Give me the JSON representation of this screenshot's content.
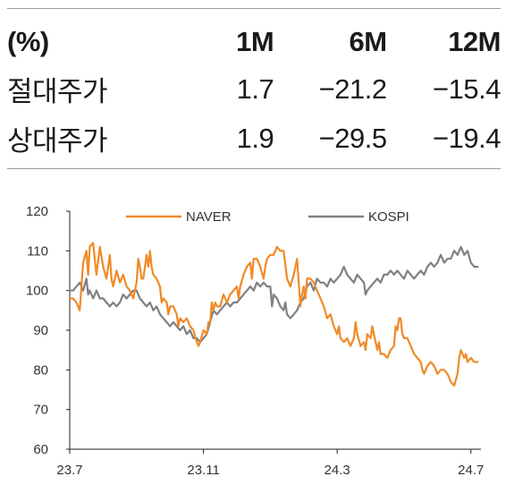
{
  "table": {
    "header": [
      "(%)",
      "1M",
      "6M",
      "12M"
    ],
    "rows": [
      {
        "label": "절대주가",
        "values": [
          "1.7",
          "−21.2",
          "−15.4"
        ]
      },
      {
        "label": "상대주가",
        "values": [
          "1.9",
          "−29.5",
          "−19.4"
        ]
      }
    ]
  },
  "chart_data": {
    "type": "line",
    "xlabel": "",
    "ylabel": "",
    "ylim": [
      60,
      120
    ],
    "yticks": [
      60,
      70,
      80,
      90,
      100,
      110,
      120
    ],
    "x_range": [
      0,
      12.3
    ],
    "xticks": [
      {
        "x": 0,
        "label": "23.7"
      },
      {
        "x": 4,
        "label": "23.11"
      },
      {
        "x": 8,
        "label": "24.3"
      },
      {
        "x": 12,
        "label": "24.7"
      }
    ],
    "legend_placement": "top",
    "grid": false,
    "series": [
      {
        "name": "NAVER",
        "color": "#f08a28",
        "points": [
          [
            0,
            98
          ],
          [
            0.1,
            98
          ],
          [
            0.2,
            97
          ],
          [
            0.3,
            95
          ],
          [
            0.35,
            101
          ],
          [
            0.4,
            107
          ],
          [
            0.5,
            110
          ],
          [
            0.55,
            104
          ],
          [
            0.6,
            111
          ],
          [
            0.7,
            112
          ],
          [
            0.75,
            108
          ],
          [
            0.8,
            104
          ],
          [
            0.9,
            111
          ],
          [
            1.0,
            106
          ],
          [
            1.1,
            103
          ],
          [
            1.2,
            109
          ],
          [
            1.25,
            103
          ],
          [
            1.3,
            101
          ],
          [
            1.4,
            105
          ],
          [
            1.5,
            102
          ],
          [
            1.6,
            104
          ],
          [
            1.7,
            101
          ],
          [
            1.8,
            100
          ],
          [
            1.9,
            98
          ],
          [
            2.0,
            102
          ],
          [
            2.05,
            108
          ],
          [
            2.1,
            106
          ],
          [
            2.15,
            103
          ],
          [
            2.2,
            103
          ],
          [
            2.3,
            109
          ],
          [
            2.35,
            106
          ],
          [
            2.4,
            110
          ],
          [
            2.45,
            106
          ],
          [
            2.5,
            104
          ],
          [
            2.6,
            103
          ],
          [
            2.7,
            101
          ],
          [
            2.75,
            97
          ],
          [
            2.8,
            98
          ],
          [
            2.9,
            97
          ],
          [
            2.95,
            94
          ],
          [
            3.0,
            96
          ],
          [
            3.1,
            96
          ],
          [
            3.2,
            94
          ],
          [
            3.25,
            91
          ],
          [
            3.3,
            93
          ],
          [
            3.4,
            92
          ],
          [
            3.5,
            93
          ],
          [
            3.6,
            91
          ],
          [
            3.7,
            90
          ],
          [
            3.8,
            87
          ],
          [
            3.85,
            86
          ],
          [
            3.9,
            87
          ],
          [
            4.0,
            90
          ],
          [
            4.1,
            89
          ],
          [
            4.15,
            92
          ],
          [
            4.2,
            92
          ],
          [
            4.25,
            97
          ],
          [
            4.3,
            95
          ],
          [
            4.35,
            97
          ],
          [
            4.4,
            96
          ],
          [
            4.5,
            96
          ],
          [
            4.6,
            99
          ],
          [
            4.7,
            97
          ],
          [
            4.8,
            99
          ],
          [
            4.9,
            100
          ],
          [
            5.0,
            101
          ],
          [
            5.05,
            98
          ],
          [
            5.1,
            101
          ],
          [
            5.2,
            104
          ],
          [
            5.3,
            106
          ],
          [
            5.4,
            107
          ],
          [
            5.45,
            103
          ],
          [
            5.5,
            108
          ],
          [
            5.6,
            108
          ],
          [
            5.7,
            106
          ],
          [
            5.8,
            103
          ],
          [
            5.85,
            106
          ],
          [
            5.9,
            108
          ],
          [
            6.0,
            109
          ],
          [
            6.1,
            109
          ],
          [
            6.2,
            111
          ],
          [
            6.3,
            110
          ],
          [
            6.4,
            110
          ],
          [
            6.5,
            103
          ],
          [
            6.6,
            101
          ],
          [
            6.7,
            104
          ],
          [
            6.8,
            108
          ],
          [
            6.85,
            102
          ],
          [
            6.9,
            96
          ],
          [
            6.95,
            99
          ],
          [
            7.0,
            101
          ],
          [
            7.05,
            98
          ],
          [
            7.1,
            103
          ],
          [
            7.2,
            103
          ],
          [
            7.3,
            102
          ],
          [
            7.4,
            100
          ],
          [
            7.5,
            98
          ],
          [
            7.55,
            97
          ],
          [
            7.6,
            96
          ],
          [
            7.7,
            93
          ],
          [
            7.8,
            94
          ],
          [
            7.9,
            91
          ],
          [
            8.0,
            89
          ],
          [
            8.05,
            91
          ],
          [
            8.1,
            88
          ],
          [
            8.2,
            87
          ],
          [
            8.3,
            88
          ],
          [
            8.4,
            86
          ],
          [
            8.5,
            88
          ],
          [
            8.55,
            92
          ],
          [
            8.6,
            89
          ],
          [
            8.7,
            86
          ],
          [
            8.8,
            87
          ],
          [
            8.85,
            85
          ],
          [
            8.9,
            89
          ],
          [
            9.0,
            88
          ],
          [
            9.05,
            91
          ],
          [
            9.1,
            89
          ],
          [
            9.2,
            85
          ],
          [
            9.25,
            87
          ],
          [
            9.3,
            84
          ],
          [
            9.4,
            84
          ],
          [
            9.5,
            83
          ],
          [
            9.6,
            85
          ],
          [
            9.7,
            86
          ],
          [
            9.75,
            91
          ],
          [
            9.8,
            90
          ],
          [
            9.85,
            93
          ],
          [
            9.9,
            93
          ],
          [
            9.95,
            89
          ],
          [
            10.0,
            88
          ],
          [
            10.1,
            88
          ],
          [
            10.2,
            86
          ],
          [
            10.3,
            84
          ],
          [
            10.4,
            83
          ],
          [
            10.5,
            82
          ],
          [
            10.55,
            80
          ],
          [
            10.6,
            79
          ],
          [
            10.7,
            81
          ],
          [
            10.8,
            82
          ],
          [
            10.9,
            81
          ],
          [
            11.0,
            79
          ],
          [
            11.1,
            80
          ],
          [
            11.2,
            80
          ],
          [
            11.3,
            79
          ],
          [
            11.35,
            78
          ],
          [
            11.4,
            77
          ],
          [
            11.5,
            76
          ],
          [
            11.6,
            79
          ],
          [
            11.65,
            83
          ],
          [
            11.7,
            85
          ],
          [
            11.8,
            83
          ],
          [
            11.85,
            84
          ],
          [
            11.9,
            82
          ],
          [
            12.0,
            83
          ],
          [
            12.1,
            82
          ],
          [
            12.2,
            82
          ]
        ]
      },
      {
        "name": "KOSPI",
        "color": "#808080",
        "points": [
          [
            0,
            100
          ],
          [
            0.1,
            100
          ],
          [
            0.2,
            101
          ],
          [
            0.3,
            102
          ],
          [
            0.4,
            100
          ],
          [
            0.5,
            103
          ],
          [
            0.55,
            99
          ],
          [
            0.6,
            100
          ],
          [
            0.7,
            98
          ],
          [
            0.8,
            100
          ],
          [
            0.9,
            98
          ],
          [
            1.0,
            98
          ],
          [
            1.1,
            97
          ],
          [
            1.2,
            96
          ],
          [
            1.3,
            97
          ],
          [
            1.4,
            96
          ],
          [
            1.5,
            97
          ],
          [
            1.6,
            99
          ],
          [
            1.7,
            98
          ],
          [
            1.8,
            99
          ],
          [
            1.9,
            100
          ],
          [
            2.0,
            100
          ],
          [
            2.1,
            98
          ],
          [
            2.2,
            97
          ],
          [
            2.3,
            96
          ],
          [
            2.4,
            97
          ],
          [
            2.5,
            95
          ],
          [
            2.6,
            96
          ],
          [
            2.7,
            94
          ],
          [
            2.8,
            93
          ],
          [
            2.9,
            92
          ],
          [
            3.0,
            91
          ],
          [
            3.1,
            92
          ],
          [
            3.2,
            91
          ],
          [
            3.3,
            90
          ],
          [
            3.4,
            91
          ],
          [
            3.5,
            89
          ],
          [
            3.6,
            90
          ],
          [
            3.7,
            88
          ],
          [
            3.8,
            88
          ],
          [
            3.9,
            87
          ],
          [
            4.0,
            88
          ],
          [
            4.1,
            89
          ],
          [
            4.2,
            92
          ],
          [
            4.3,
            95
          ],
          [
            4.4,
            94
          ],
          [
            4.5,
            95
          ],
          [
            4.6,
            96
          ],
          [
            4.7,
            97
          ],
          [
            4.8,
            96
          ],
          [
            4.9,
            97
          ],
          [
            5.0,
            97
          ],
          [
            5.1,
            98
          ],
          [
            5.2,
            99
          ],
          [
            5.3,
            100
          ],
          [
            5.4,
            101
          ],
          [
            5.5,
            100
          ],
          [
            5.6,
            102
          ],
          [
            5.7,
            101
          ],
          [
            5.8,
            102
          ],
          [
            5.9,
            101
          ],
          [
            6.0,
            101
          ],
          [
            6.05,
            96
          ],
          [
            6.1,
            99
          ],
          [
            6.2,
            98
          ],
          [
            6.3,
            96
          ],
          [
            6.4,
            95
          ],
          [
            6.45,
            97
          ],
          [
            6.5,
            94
          ],
          [
            6.6,
            93
          ],
          [
            6.7,
            94
          ],
          [
            6.8,
            95
          ],
          [
            6.9,
            97
          ],
          [
            7.0,
            98
          ],
          [
            7.1,
            101
          ],
          [
            7.2,
            102
          ],
          [
            7.3,
            100
          ],
          [
            7.4,
            103
          ],
          [
            7.5,
            102
          ],
          [
            7.6,
            102
          ],
          [
            7.7,
            101
          ],
          [
            7.8,
            103
          ],
          [
            7.9,
            102
          ],
          [
            8.0,
            103
          ],
          [
            8.1,
            104
          ],
          [
            8.2,
            106
          ],
          [
            8.3,
            104
          ],
          [
            8.4,
            103
          ],
          [
            8.5,
            102
          ],
          [
            8.6,
            104
          ],
          [
            8.7,
            103
          ],
          [
            8.8,
            102
          ],
          [
            8.85,
            99
          ],
          [
            8.9,
            100
          ],
          [
            9.0,
            101
          ],
          [
            9.1,
            102
          ],
          [
            9.2,
            103
          ],
          [
            9.3,
            102
          ],
          [
            9.4,
            104
          ],
          [
            9.5,
            104
          ],
          [
            9.6,
            105
          ],
          [
            9.7,
            104
          ],
          [
            9.8,
            105
          ],
          [
            9.9,
            104
          ],
          [
            10.0,
            103
          ],
          [
            10.1,
            105
          ],
          [
            10.2,
            104
          ],
          [
            10.3,
            103
          ],
          [
            10.4,
            104
          ],
          [
            10.5,
            105
          ],
          [
            10.6,
            104
          ],
          [
            10.7,
            106
          ],
          [
            10.8,
            107
          ],
          [
            10.9,
            106
          ],
          [
            11.0,
            107
          ],
          [
            11.1,
            109
          ],
          [
            11.2,
            107
          ],
          [
            11.3,
            108
          ],
          [
            11.4,
            108
          ],
          [
            11.5,
            110
          ],
          [
            11.6,
            109
          ],
          [
            11.7,
            111
          ],
          [
            11.8,
            109
          ],
          [
            11.9,
            110
          ],
          [
            12.0,
            107
          ],
          [
            12.1,
            106
          ],
          [
            12.2,
            106
          ]
        ]
      }
    ]
  }
}
